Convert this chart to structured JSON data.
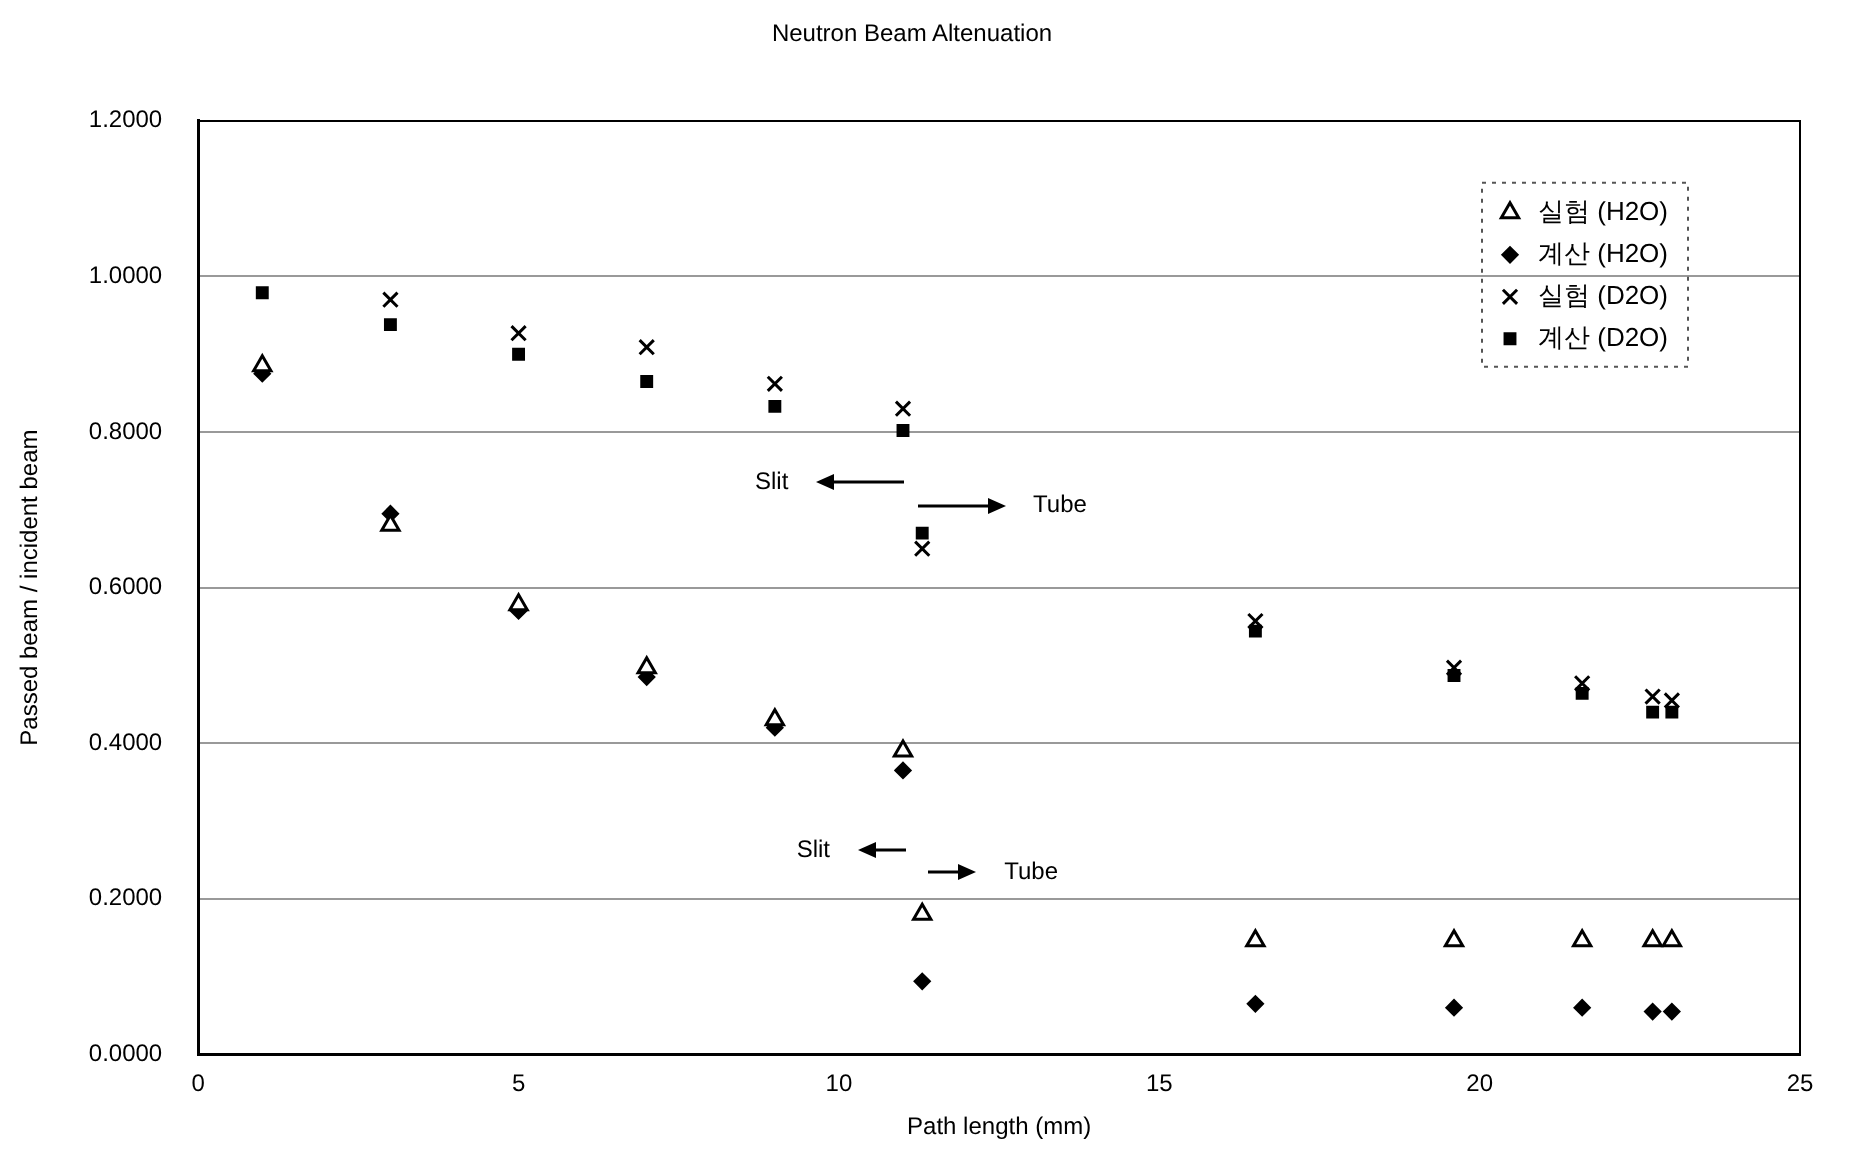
{
  "chart_data": {
    "type": "scatter",
    "title": "Neutron Beam Altenuation",
    "xlabel": "Path length (mm)",
    "ylabel": "Passed beam / incident beam",
    "x": [
      1,
      3,
      5,
      7,
      9,
      11,
      11.3,
      16.5,
      19.6,
      21.6,
      22.7,
      23
    ],
    "series": [
      {
        "name": "실험 (H2O)",
        "color": "#000000",
        "marker": "triangle",
        "values": [
          0.885,
          0.68,
          0.578,
          0.497,
          0.43,
          0.39,
          0.18,
          0.146,
          0.146,
          0.146,
          0.146,
          0.146
        ]
      },
      {
        "name": "계산 (H2O)",
        "color": "#000000",
        "marker": "diamond",
        "values": [
          0.875,
          0.695,
          0.57,
          0.485,
          0.42,
          0.365,
          0.094,
          0.065,
          0.06,
          0.06,
          0.055,
          0.055
        ]
      },
      {
        "name": "실험 (D2O)",
        "color": "#000000",
        "marker": "cross",
        "values": [
          null,
          0.97,
          0.927,
          0.909,
          0.862,
          0.83,
          0.65,
          0.557,
          0.497,
          0.477,
          0.46,
          0.455
        ]
      },
      {
        "name": "계산 (D2O)",
        "color": "#000000",
        "marker": "square",
        "values": [
          0.979,
          0.938,
          0.9,
          0.865,
          0.833,
          0.802,
          0.67,
          0.544,
          0.487,
          0.464,
          0.44,
          0.44
        ]
      }
    ],
    "xlim": [
      0,
      25
    ],
    "xticks": [
      0,
      5,
      10,
      15,
      20,
      25
    ],
    "ylim": [
      0,
      1.2
    ],
    "yticks": [
      {
        "value": 0,
        "label": "0.0000"
      },
      {
        "value": 0.2,
        "label": "0.2000"
      },
      {
        "value": 0.4,
        "label": "0.4000"
      },
      {
        "value": 0.6,
        "label": "0.6000"
      },
      {
        "value": 0.8,
        "label": "0.8000"
      },
      {
        "value": 1,
        "label": "1.0000"
      },
      {
        "value": 1.2,
        "label": "1.2000"
      }
    ],
    "grid": "y",
    "legend": "top right",
    "annotations": [
      "Slit",
      "Tube",
      "Slit",
      "Tube"
    ]
  }
}
